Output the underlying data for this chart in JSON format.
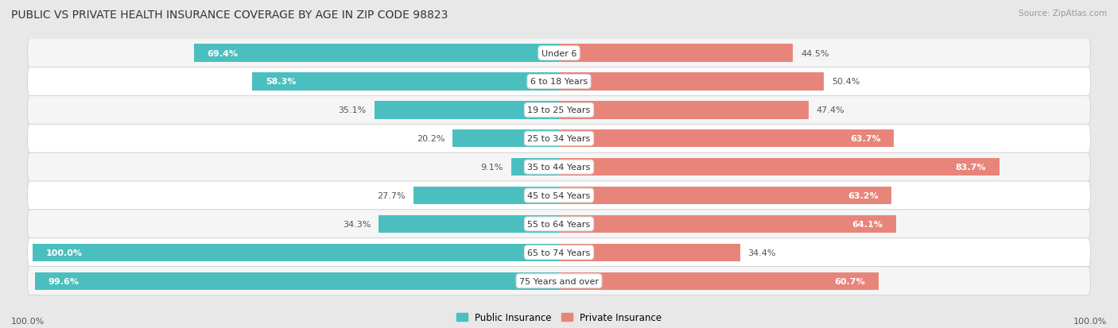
{
  "title": "PUBLIC VS PRIVATE HEALTH INSURANCE COVERAGE BY AGE IN ZIP CODE 98823",
  "source": "Source: ZipAtlas.com",
  "categories": [
    "Under 6",
    "6 to 18 Years",
    "19 to 25 Years",
    "25 to 34 Years",
    "35 to 44 Years",
    "45 to 54 Years",
    "55 to 64 Years",
    "65 to 74 Years",
    "75 Years and over"
  ],
  "public_values": [
    69.4,
    58.3,
    35.1,
    20.2,
    9.1,
    27.7,
    34.3,
    100.0,
    99.6
  ],
  "private_values": [
    44.5,
    50.4,
    47.4,
    63.7,
    83.7,
    63.2,
    64.1,
    34.4,
    60.7
  ],
  "public_color": "#4bbfbf",
  "private_color": "#e8857a",
  "bg_color": "#e8e8e8",
  "row_colors": [
    "#f5f5f5",
    "#ffffff"
  ],
  "bar_height": 0.62,
  "title_fontsize": 10,
  "source_fontsize": 7.5,
  "label_fontsize": 8,
  "category_fontsize": 8,
  "axis_label_bottom": "100.0%",
  "legend_public": "Public Insurance",
  "legend_private": "Private Insurance",
  "max_val": 100.0,
  "white_text_threshold_pub": 55,
  "white_text_threshold_priv": 55
}
